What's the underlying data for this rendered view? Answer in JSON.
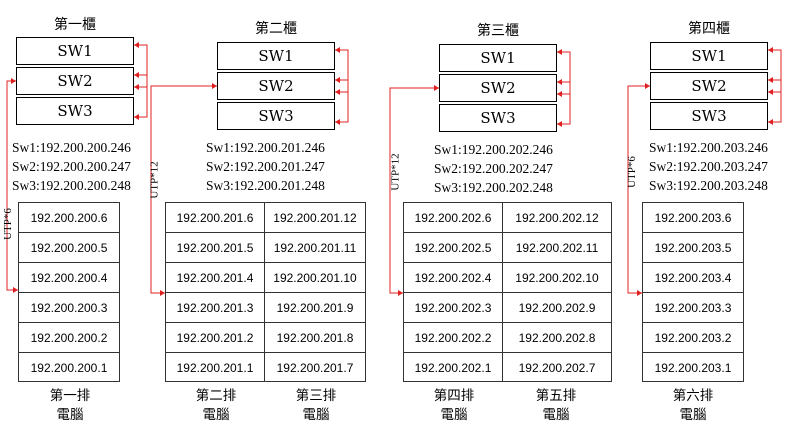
{
  "cabinets": [
    {
      "title": "第一櫃",
      "switches": [
        "SW1",
        "SW2",
        "SW3"
      ],
      "ips": [
        "Sw1:192.200.200.246",
        "Sw2:192.200.200.247",
        "Sw3:192.200.200.248"
      ]
    },
    {
      "title": "第二櫃",
      "switches": [
        "SW1",
        "SW2",
        "SW3"
      ],
      "ips": [
        "Sw1:192.200.201.246",
        "Sw2:192.200.201.247",
        "Sw3:192.200.201.248"
      ]
    },
    {
      "title": "第三櫃",
      "switches": [
        "SW1",
        "SW2",
        "SW3"
      ],
      "ips": [
        "Sw1:192.200.202.246",
        "Sw2:192.200.202.247",
        "Sw3:192.200.202.248"
      ]
    },
    {
      "title": "第四櫃",
      "switches": [
        "SW1",
        "SW2",
        "SW3"
      ],
      "ips": [
        "Sw1:192.200.203.246",
        "Sw2:192.200.203.247",
        "Sw3:192.200.203.248"
      ]
    }
  ],
  "utp_labels": [
    "UTP*6",
    "UTP*12",
    "UTP*12",
    "UTP*6"
  ],
  "rows": [
    {
      "label": [
        "第一排",
        "電腦"
      ],
      "ips": [
        "192.200.200.6",
        "192.200.200.5",
        "192.200.200.4",
        "192.200.200.3",
        "192.200.200.2",
        "192.200.200.1"
      ]
    },
    {
      "label": [
        "第二排",
        "電腦"
      ],
      "ips": [
        "192.200.201.6",
        "192.200.201.5",
        "192.200.201.4",
        "192.200.201.3",
        "192.200.201.2",
        "192.200.201.1"
      ]
    },
    {
      "label": [
        "第三排",
        "電腦"
      ],
      "ips": [
        "192.200.201.12",
        "192.200.201.11",
        "192.200.201.10",
        "192.200.201.9",
        "192.200.201.8",
        "192.200.201.7"
      ]
    },
    {
      "label": [
        "第四排",
        "電腦"
      ],
      "ips": [
        "192.200.202.6",
        "192.200.202.5",
        "192.200.202.4",
        "192.200.202.3",
        "192.200.202.2",
        "192.200.202.1"
      ]
    },
    {
      "label": [
        "第五排",
        "電腦"
      ],
      "ips": [
        "192.200.202.12",
        "192.200.202.11",
        "192.200.202.10",
        "192.200.202.9",
        "192.200.202.8",
        "192.200.202.7"
      ]
    },
    {
      "label": [
        "第六排",
        "電腦"
      ],
      "ips": [
        "192.200.203.6",
        "192.200.203.5",
        "192.200.203.4",
        "192.200.203.3",
        "192.200.203.2",
        "192.200.203.1"
      ]
    }
  ],
  "colors": {
    "wire": "#e02020",
    "border": "#000000"
  }
}
